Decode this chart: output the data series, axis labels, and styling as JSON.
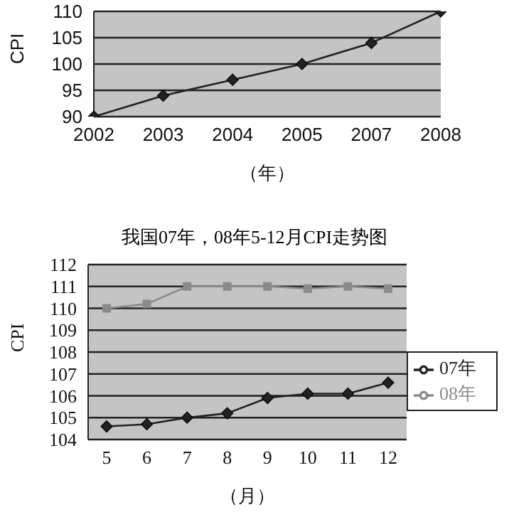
{
  "chart_data": [
    {
      "type": "line",
      "categories": [
        "2002",
        "2003",
        "2004",
        "2005",
        "2007",
        "2008"
      ],
      "values": [
        90,
        94,
        97,
        100,
        104,
        110
      ],
      "color": "#222222",
      "ylabel": "CPI",
      "xlabel": "（年）",
      "ylim": [
        90,
        110
      ],
      "yticks": [
        90,
        95,
        100,
        105,
        110
      ],
      "grid": "y",
      "marker": "diamond"
    },
    {
      "type": "line",
      "title": "我国07年，08年5-12月CPI走势图",
      "categories": [
        "5",
        "6",
        "7",
        "8",
        "9",
        "10",
        "11",
        "12"
      ],
      "series": [
        {
          "name": "07年",
          "color": "#222222",
          "values": [
            104.6,
            104.7,
            105.0,
            105.2,
            105.9,
            106.1,
            106.1,
            106.6
          ]
        },
        {
          "name": "08年",
          "color": "#8a8a8a",
          "marker": "square",
          "values": [
            110.0,
            110.2,
            111.0,
            111.0,
            111.0,
            110.9,
            111.0,
            110.9
          ]
        }
      ],
      "ylabel": "CPI",
      "xlabel": "（月）",
      "ylim": [
        104,
        112
      ],
      "yticks": [
        104,
        105,
        106,
        107,
        108,
        109,
        110,
        111,
        112
      ],
      "grid": "y",
      "marker": "diamond",
      "legend": "right"
    }
  ]
}
